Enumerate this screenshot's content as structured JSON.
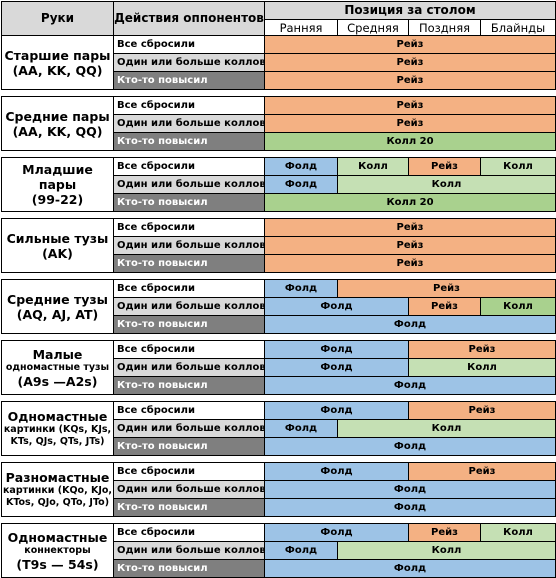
{
  "header": {
    "col_hand": "Руки",
    "col_action": "Действия оппонентов",
    "col_position": "Позиция за столом",
    "positions": [
      "Ранняя",
      "Средняя",
      "Поздняя",
      "Блайнды"
    ]
  },
  "colors": {
    "raise": "#f4b183",
    "fold": "#9dc3e6",
    "call": "#c5e0b4",
    "call20": "#a9d18e",
    "header_bg": "#d9d9d9",
    "row_dark": "#7f7f7f"
  },
  "groups": [
    {
      "title": "Старшие пары",
      "sub": "(AA, KK, QQ)",
      "rows": [
        {
          "action": "Все сбросили",
          "cells": [
            {
              "label": "Рейз",
              "type": "raise",
              "span": 4
            }
          ]
        },
        {
          "action": "Один или больше коллов",
          "cells": [
            {
              "label": "Рейз",
              "type": "raise",
              "span": 4
            }
          ]
        },
        {
          "action": "Кто-то повысил",
          "cells": [
            {
              "label": "Рейз",
              "type": "raise",
              "span": 4
            }
          ]
        }
      ]
    },
    {
      "title": "Средние пары",
      "sub": "(AA, KK, QQ)",
      "rows": [
        {
          "action": "Все сбросили",
          "cells": [
            {
              "label": "Рейз",
              "type": "raise",
              "span": 4
            }
          ]
        },
        {
          "action": "Один или больше коллов",
          "cells": [
            {
              "label": "Рейз",
              "type": "raise",
              "span": 4
            }
          ]
        },
        {
          "action": "Кто-то повысил",
          "cells": [
            {
              "label": "Колл 20",
              "type": "call20",
              "span": 4
            }
          ]
        }
      ]
    },
    {
      "title": "Младшие пары",
      "sub": "(99-22)",
      "rows": [
        {
          "action": "Все сбросили",
          "cells": [
            {
              "label": "Фолд",
              "type": "fold",
              "span": 1
            },
            {
              "label": "Колл",
              "type": "call",
              "span": 1
            },
            {
              "label": "Рейз",
              "type": "raise",
              "span": 1
            },
            {
              "label": "Колл",
              "type": "call",
              "span": 1
            }
          ]
        },
        {
          "action": "Один или больше коллов",
          "cells": [
            {
              "label": "Фолд",
              "type": "fold",
              "span": 1
            },
            {
              "label": "Колл",
              "type": "call",
              "span": 3
            }
          ]
        },
        {
          "action": "Кто-то повысил",
          "cells": [
            {
              "label": "Колл 20",
              "type": "call20",
              "span": 4
            }
          ]
        }
      ]
    },
    {
      "title": "Сильные тузы",
      "sub": "(AK)",
      "rows": [
        {
          "action": "Все сбросили",
          "cells": [
            {
              "label": "Рейз",
              "type": "raise",
              "span": 4
            }
          ]
        },
        {
          "action": "Один или больше коллов",
          "cells": [
            {
              "label": "Рейз",
              "type": "raise",
              "span": 4
            }
          ]
        },
        {
          "action": "Кто-то повысил",
          "cells": [
            {
              "label": "Рейз",
              "type": "raise",
              "span": 4
            }
          ]
        }
      ]
    },
    {
      "title": "Средние тузы",
      "sub": "(AQ, AJ, AT)",
      "rows": [
        {
          "action": "Все сбросили",
          "cells": [
            {
              "label": "Фолд",
              "type": "fold",
              "span": 1
            },
            {
              "label": "Рейз",
              "type": "raise",
              "span": 3
            }
          ]
        },
        {
          "action": "Один или больше коллов",
          "cells": [
            {
              "label": "Фолд",
              "type": "fold",
              "span": 2
            },
            {
              "label": "Рейз",
              "type": "raise",
              "span": 1
            },
            {
              "label": "Колл",
              "type": "call20",
              "span": 1
            }
          ]
        },
        {
          "action": "Кто-то повысил",
          "cells": [
            {
              "label": "Фолд",
              "type": "fold",
              "span": 4
            }
          ]
        }
      ]
    },
    {
      "title": "Малые",
      "sub": "одномастные тузы",
      "sub2": "(A9s —A2s)",
      "rows": [
        {
          "action": "Все сбросили",
          "cells": [
            {
              "label": "Фолд",
              "type": "fold",
              "span": 2
            },
            {
              "label": "Рейз",
              "type": "raise",
              "span": 2
            }
          ]
        },
        {
          "action": "Один или больше коллов",
          "cells": [
            {
              "label": "Фолд",
              "type": "fold",
              "span": 2
            },
            {
              "label": "Колл",
              "type": "call",
              "span": 2
            }
          ]
        },
        {
          "action": "Кто-то повысил",
          "cells": [
            {
              "label": "Фолд",
              "type": "fold",
              "span": 4
            }
          ]
        }
      ]
    },
    {
      "title": "Одномастные",
      "sub": "картинки (KQs, KJs,",
      "sub2": "KTs, QJs, QTs, JTs)",
      "rows": [
        {
          "action": "Все сбросили",
          "cells": [
            {
              "label": "Фолд",
              "type": "fold",
              "span": 2
            },
            {
              "label": "Рейз",
              "type": "raise",
              "span": 2
            }
          ]
        },
        {
          "action": "Один или больше коллов",
          "cells": [
            {
              "label": "Фолд",
              "type": "fold",
              "span": 1
            },
            {
              "label": "Колл",
              "type": "call",
              "span": 3
            }
          ]
        },
        {
          "action": "Кто-то повысил",
          "cells": [
            {
              "label": "Фолд",
              "type": "fold",
              "span": 4
            }
          ]
        }
      ]
    },
    {
      "title": "Разномастные",
      "sub": "картинки (KQo, KJo,",
      "sub2": "KTos, QJo, QTo, JTo)",
      "rows": [
        {
          "action": "Все сбросили",
          "cells": [
            {
              "label": "Фолд",
              "type": "fold",
              "span": 2
            },
            {
              "label": "Рейз",
              "type": "raise",
              "span": 2
            }
          ]
        },
        {
          "action": "Один или больше коллов",
          "cells": [
            {
              "label": "Фолд",
              "type": "fold",
              "span": 4
            }
          ]
        },
        {
          "action": "Кто-то повысил",
          "cells": [
            {
              "label": "Фолд",
              "type": "fold",
              "span": 4
            }
          ]
        }
      ]
    },
    {
      "title": "Одномастные",
      "sub": "коннекторы",
      "sub2": "(T9s — 54s)",
      "rows": [
        {
          "action": "Все сбросили",
          "cells": [
            {
              "label": "Фолд",
              "type": "fold",
              "span": 2
            },
            {
              "label": "Рейз",
              "type": "raise",
              "span": 1
            },
            {
              "label": "Колл",
              "type": "call",
              "span": 1
            }
          ]
        },
        {
          "action": "Один или больше коллов",
          "cells": [
            {
              "label": "Фолд",
              "type": "fold",
              "span": 1
            },
            {
              "label": "Колл",
              "type": "call",
              "span": 3
            }
          ]
        },
        {
          "action": "Кто-то повысил",
          "cells": [
            {
              "label": "Фолд",
              "type": "fold",
              "span": 4
            }
          ]
        }
      ]
    }
  ]
}
